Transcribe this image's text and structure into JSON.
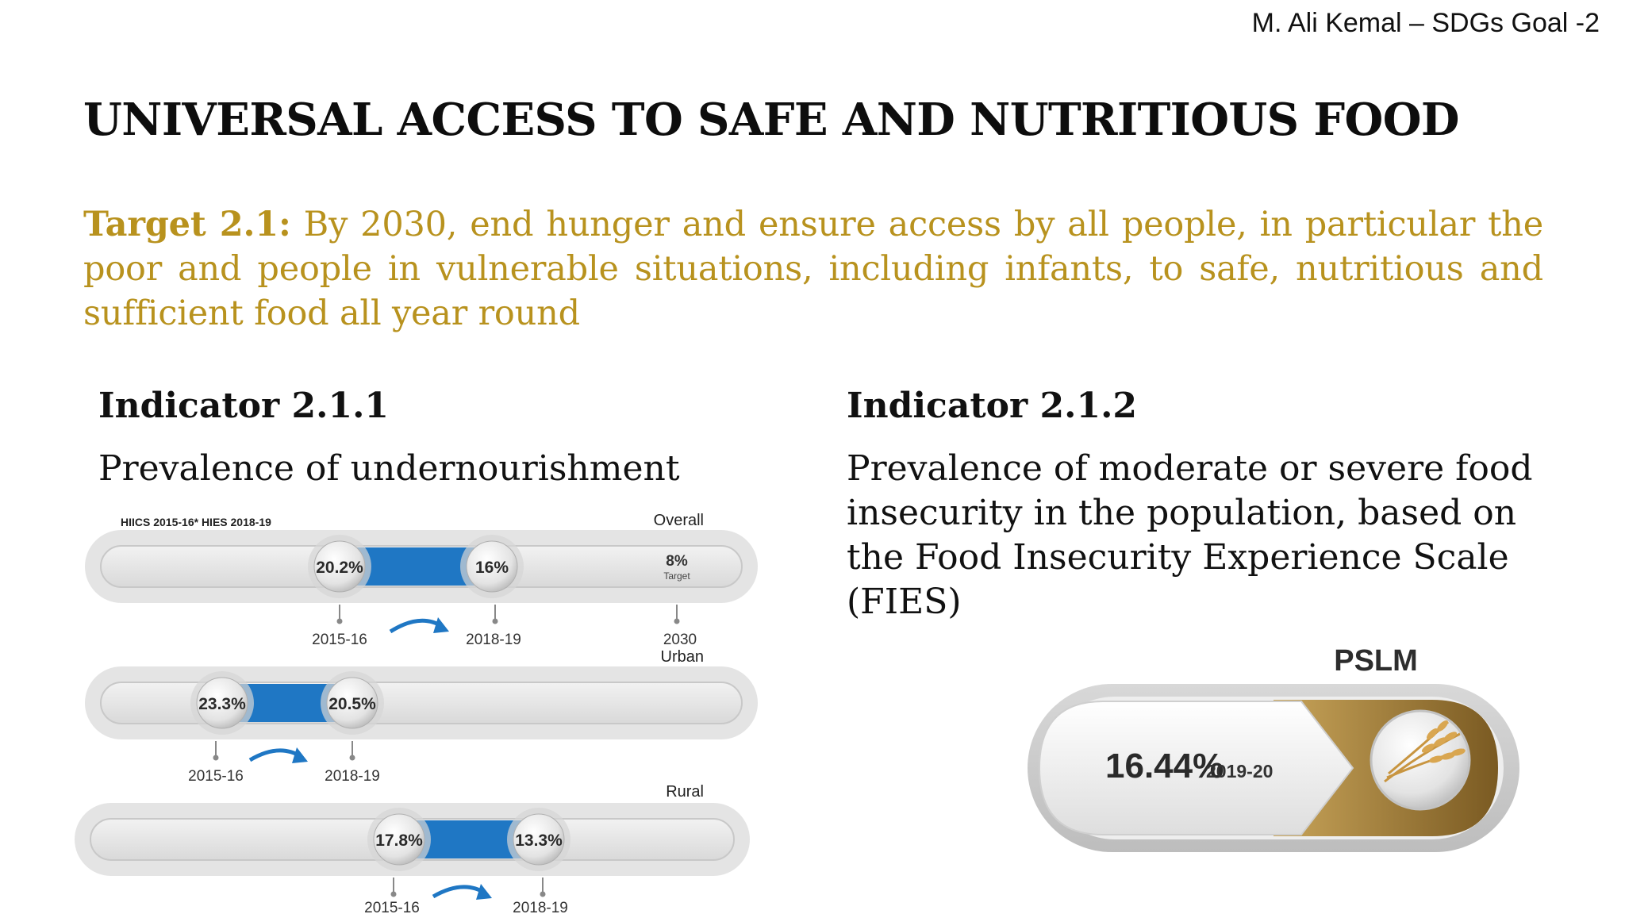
{
  "header": {
    "author": "M. Ali Kemal – SDGs Goal -2"
  },
  "title": "UNIVERSAL ACCESS TO SAFE AND NUTRITIOUS FOOD",
  "target": {
    "label": "Target 2.1:",
    "text": " By 2030, end hunger and ensure access by all people, in particular the poor and people in vulnerable situations, including infants, to safe, nutritious and sufficient food all year round"
  },
  "indicator_1": {
    "label": "Indicator 2.1.1",
    "description": "Prevalence of undernourishment",
    "source_note": "HIICS 2015-16*  HIES 2018-19",
    "bars": [
      {
        "group": "Overall",
        "value_2015": "20.2%",
        "value_2018": "16%",
        "year_start": "2015-16",
        "year_end": "2018-19",
        "target_value": "8%",
        "target_label": "Target",
        "target_year": "2030"
      },
      {
        "group": "Urban",
        "value_2015": "23.3%",
        "value_2018": "20.5%",
        "year_start": "2015-16",
        "year_end": "2018-19"
      },
      {
        "group": "Rural",
        "value_2015": "17.8%",
        "value_2018": "13.3%",
        "year_start": "2015-16",
        "year_end": "2018-19"
      }
    ]
  },
  "indicator_2": {
    "label": "Indicator 2.1.2",
    "description": "Prevalence of moderate or severe food insecurity in the population, based on the Food Insecurity Experience Scale (FIES)",
    "source": "PSLM",
    "value": "16.44%",
    "year": "2019-20",
    "icon": "wheat-icon"
  },
  "colors": {
    "accent_gold": "#b8921e",
    "bar_blue": "#1f77c4",
    "brown": "#8a6a2a"
  }
}
